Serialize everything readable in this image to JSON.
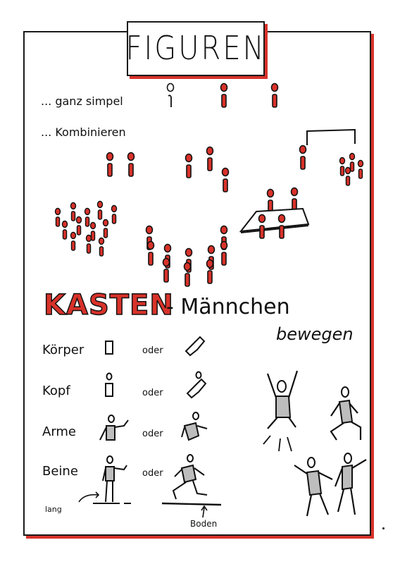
{
  "title": "FIGUREN",
  "rows": {
    "simple": "... ganz simpel",
    "combine": "... Kombinieren"
  },
  "kasten": {
    "word": "KASTEN",
    "suffix": "- Männchen"
  },
  "bewegen": "bewegen",
  "parts": [
    {
      "label": "Körper",
      "or": "oder"
    },
    {
      "label": "Kopf",
      "or": "oder"
    },
    {
      "label": "Arme",
      "or": "oder"
    },
    {
      "label": "Beine",
      "or": "oder"
    }
  ],
  "annotations": {
    "lang": "lang",
    "boden": "Boden"
  },
  "colors": {
    "accent": "#d8322a",
    "ink": "#111111"
  }
}
